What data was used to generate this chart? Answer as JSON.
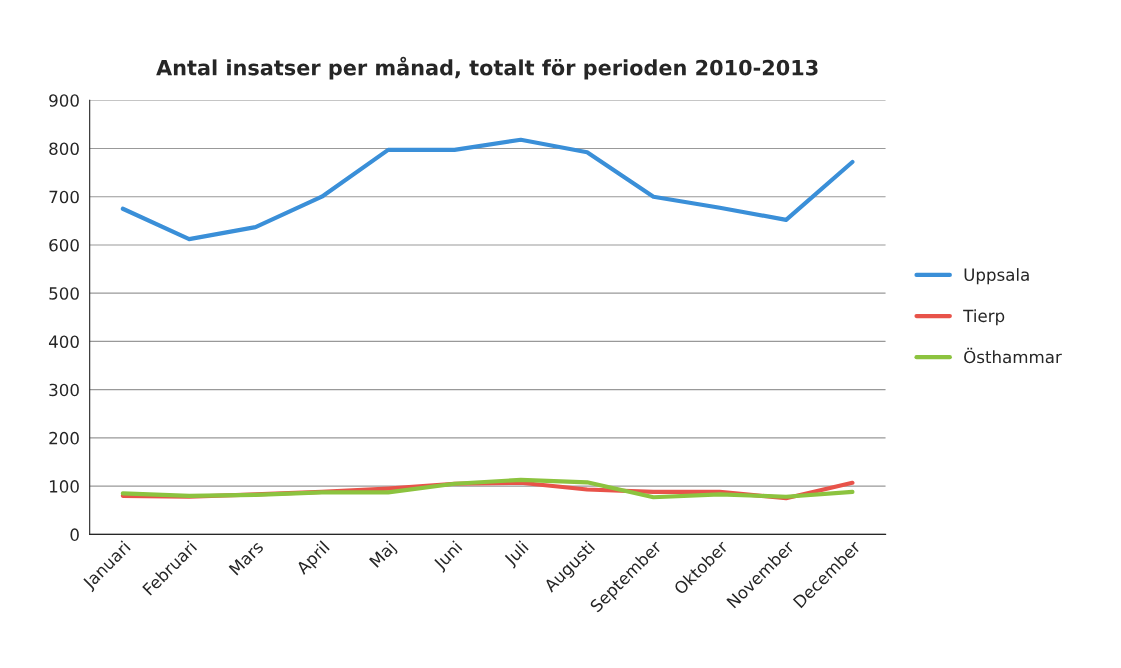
{
  "chart_data": {
    "type": "line",
    "title": "Antal insatser per månad, totalt för perioden 2010-2013",
    "categories": [
      "Januari",
      "Februari",
      "Mars",
      "April",
      "Maj",
      "Juni",
      "Juli",
      "Augusti",
      "September",
      "Oktober",
      "November",
      "December"
    ],
    "series": [
      {
        "name": "Uppsala",
        "color": "#3a8fd8",
        "values": [
          675,
          612,
          637,
          700,
          797,
          797,
          818,
          792,
          700,
          677,
          652,
          772
        ]
      },
      {
        "name": "Tierp",
        "color": "#e8534a",
        "values": [
          80,
          78,
          83,
          88,
          95,
          105,
          107,
          93,
          88,
          88,
          75,
          107
        ]
      },
      {
        "name": "Östhammar",
        "color": "#8cc33f",
        "values": [
          85,
          80,
          82,
          87,
          87,
          105,
          113,
          108,
          77,
          83,
          78,
          88
        ]
      }
    ],
    "ylim": [
      0,
      900
    ],
    "yticks": [
      0,
      100,
      200,
      300,
      400,
      500,
      600,
      700,
      800,
      900
    ],
    "grid": "y",
    "legend": "right",
    "marker": "none",
    "line_style": "solid"
  }
}
